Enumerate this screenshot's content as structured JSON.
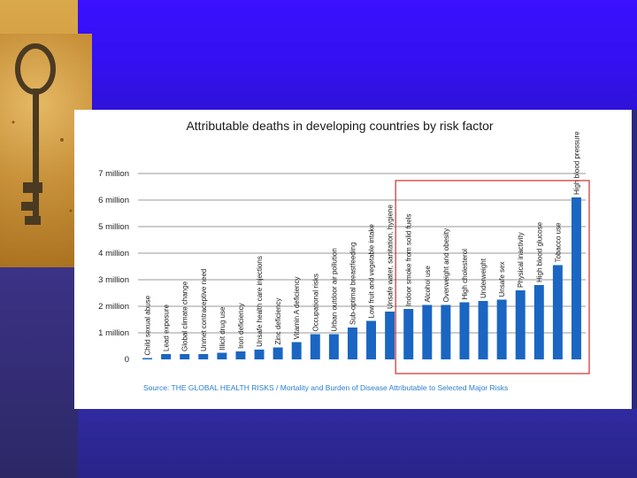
{
  "colors": {
    "bar": "#1a66c2",
    "highlight_box": "#cc2d2d",
    "grid": "#777777"
  },
  "chart_data": {
    "type": "bar",
    "title": "Attributable deaths in developing countries by risk factor",
    "source": "Source: THE GLOBAL HEALTH RISKS / Mortality and Burden of Disease Attributable to Selected Major Risks",
    "ylim": [
      0,
      7000000
    ],
    "y_ticks": [
      {
        "value": 0,
        "label": "0"
      },
      {
        "value": 1000000,
        "label": "1 million"
      },
      {
        "value": 2000000,
        "label": "2 million"
      },
      {
        "value": 3000000,
        "label": "3 million"
      },
      {
        "value": 4000000,
        "label": "4 million"
      },
      {
        "value": 5000000,
        "label": "5 million"
      },
      {
        "value": 6000000,
        "label": "6 million"
      },
      {
        "value": 7000000,
        "label": "7 million"
      }
    ],
    "categories": [
      "Child sexual abuse",
      "Lead exposure",
      "Global climate change",
      "Unmet contraceptive need",
      "Illicit drug use",
      "Iron deficiency",
      "Unsafe health care injections",
      "Zinc deficiency",
      "Vitamin A deficiency",
      "Occupational risks",
      "Urban outdoor air pollution",
      "Sub-optimal breastfeeding",
      "Low fruit and vegetable intake",
      "Unsafe water, sanitation, hygiene",
      "Indoor smoke from solid fuels",
      "Alcohol use",
      "Overweight and obesity",
      "High cholesterol",
      "Underweight",
      "Unsafe sex",
      "Physical inactivity",
      "High blood glucose",
      "Tobacco use",
      "High blood pressure"
    ],
    "values": [
      50000,
      200000,
      200000,
      200000,
      250000,
      300000,
      370000,
      450000,
      650000,
      950000,
      950000,
      1200000,
      1450000,
      1800000,
      1900000,
      2050000,
      2050000,
      2150000,
      2200000,
      2250000,
      2600000,
      2800000,
      3550000,
      6100000
    ],
    "highlighted_range": {
      "from": "Indoor smoke from solid fuels",
      "to": "High blood pressure"
    }
  }
}
